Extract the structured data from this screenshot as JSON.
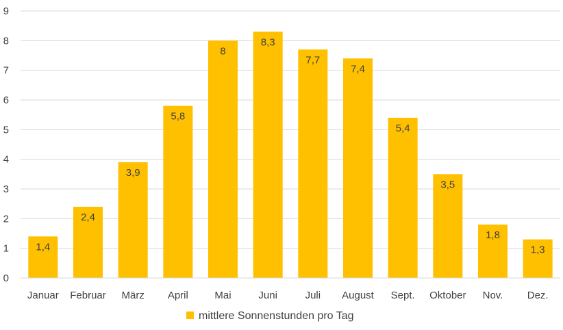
{
  "chart_data": {
    "type": "bar",
    "categories": [
      "Januar",
      "Februar",
      "März",
      "April",
      "Mai",
      "Juni",
      "Juli",
      "August",
      "Sept.",
      "Oktober",
      "Nov.",
      "Dez."
    ],
    "series": [
      {
        "name": "mittlere Sonnenstunden pro Tag",
        "values": [
          1.4,
          2.4,
          3.9,
          5.8,
          8,
          8.3,
          7.7,
          7.4,
          5.4,
          3.5,
          1.8,
          1.3
        ],
        "labels": [
          "1,4",
          "2,4",
          "3,9",
          "5,8",
          "8",
          "8,3",
          "7,7",
          "7,4",
          "5,4",
          "3,5",
          "1,8",
          "1,3"
        ],
        "color": "#FFC000"
      }
    ],
    "y_ticks": [
      "0",
      "1",
      "2",
      "3",
      "4",
      "5",
      "6",
      "7",
      "8",
      "9"
    ],
    "ylim": [
      0,
      9
    ],
    "grid": true,
    "legend_position": "bottom",
    "colors": {
      "bar": "#FFC000",
      "grid": "#D9D9D9",
      "text": "#404040"
    }
  }
}
